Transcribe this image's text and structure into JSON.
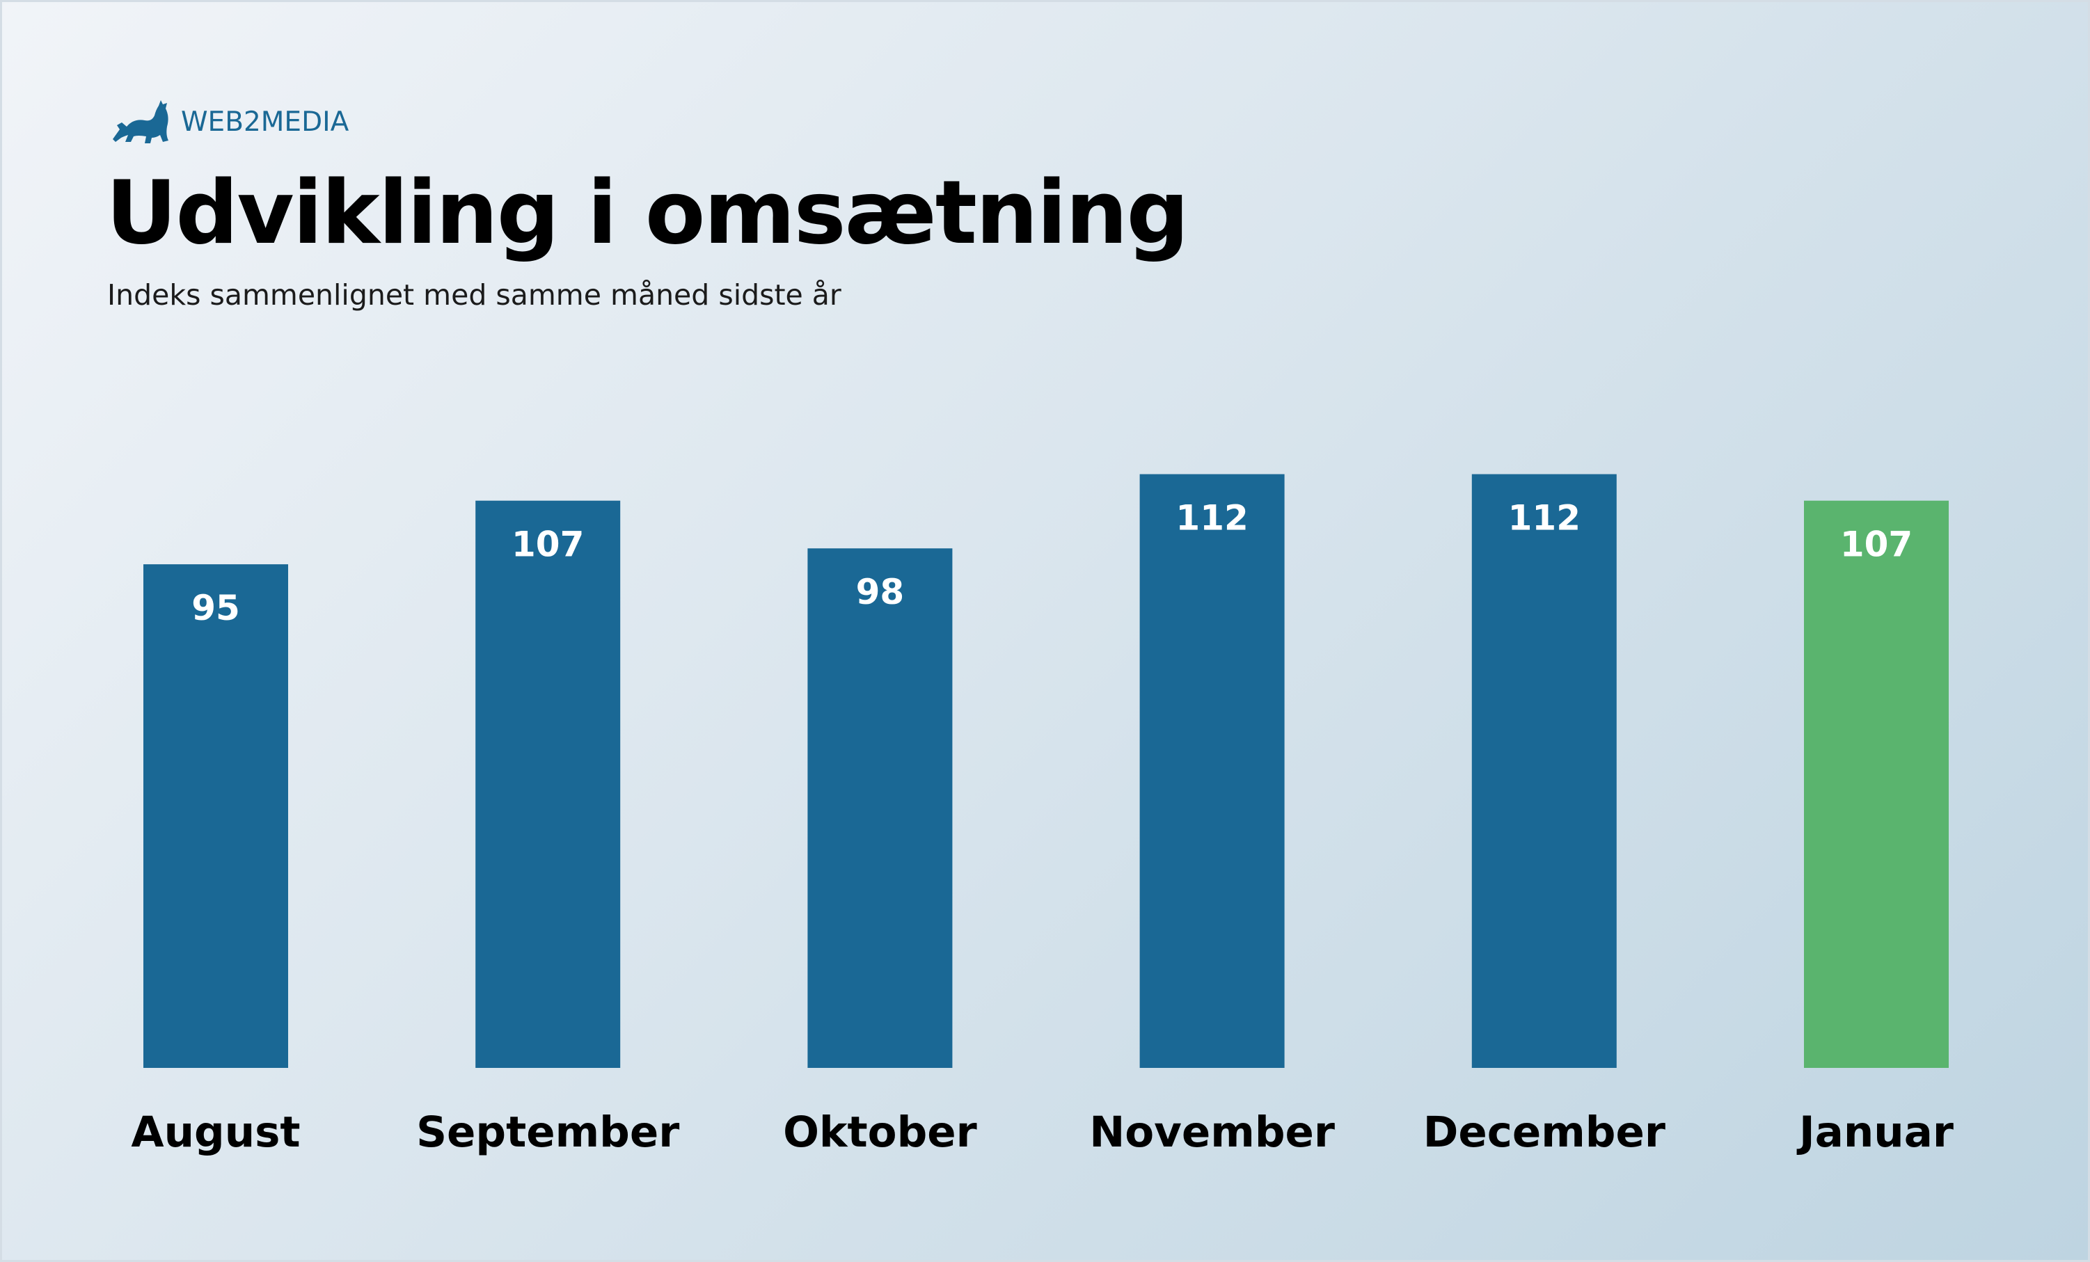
{
  "logo": {
    "text": "WEB2MEDIA",
    "icon": "cat-stretching-icon"
  },
  "title": "Udvikling i omsætning",
  "subtitle": "Indeks sammenlignet med samme måned sidste år",
  "colors": {
    "bar": "#1a6895",
    "highlight": "#5ab46e",
    "logo": "#1a6895"
  },
  "chart_data": {
    "type": "bar",
    "categories": [
      "August",
      "September",
      "Oktober",
      "November",
      "December",
      "Januar"
    ],
    "values": [
      95,
      107,
      98,
      112,
      112,
      107
    ],
    "highlight_index": 5,
    "ylim": [
      0,
      112
    ],
    "grid": false,
    "legend": "none",
    "xlabel": "",
    "ylabel": ""
  }
}
